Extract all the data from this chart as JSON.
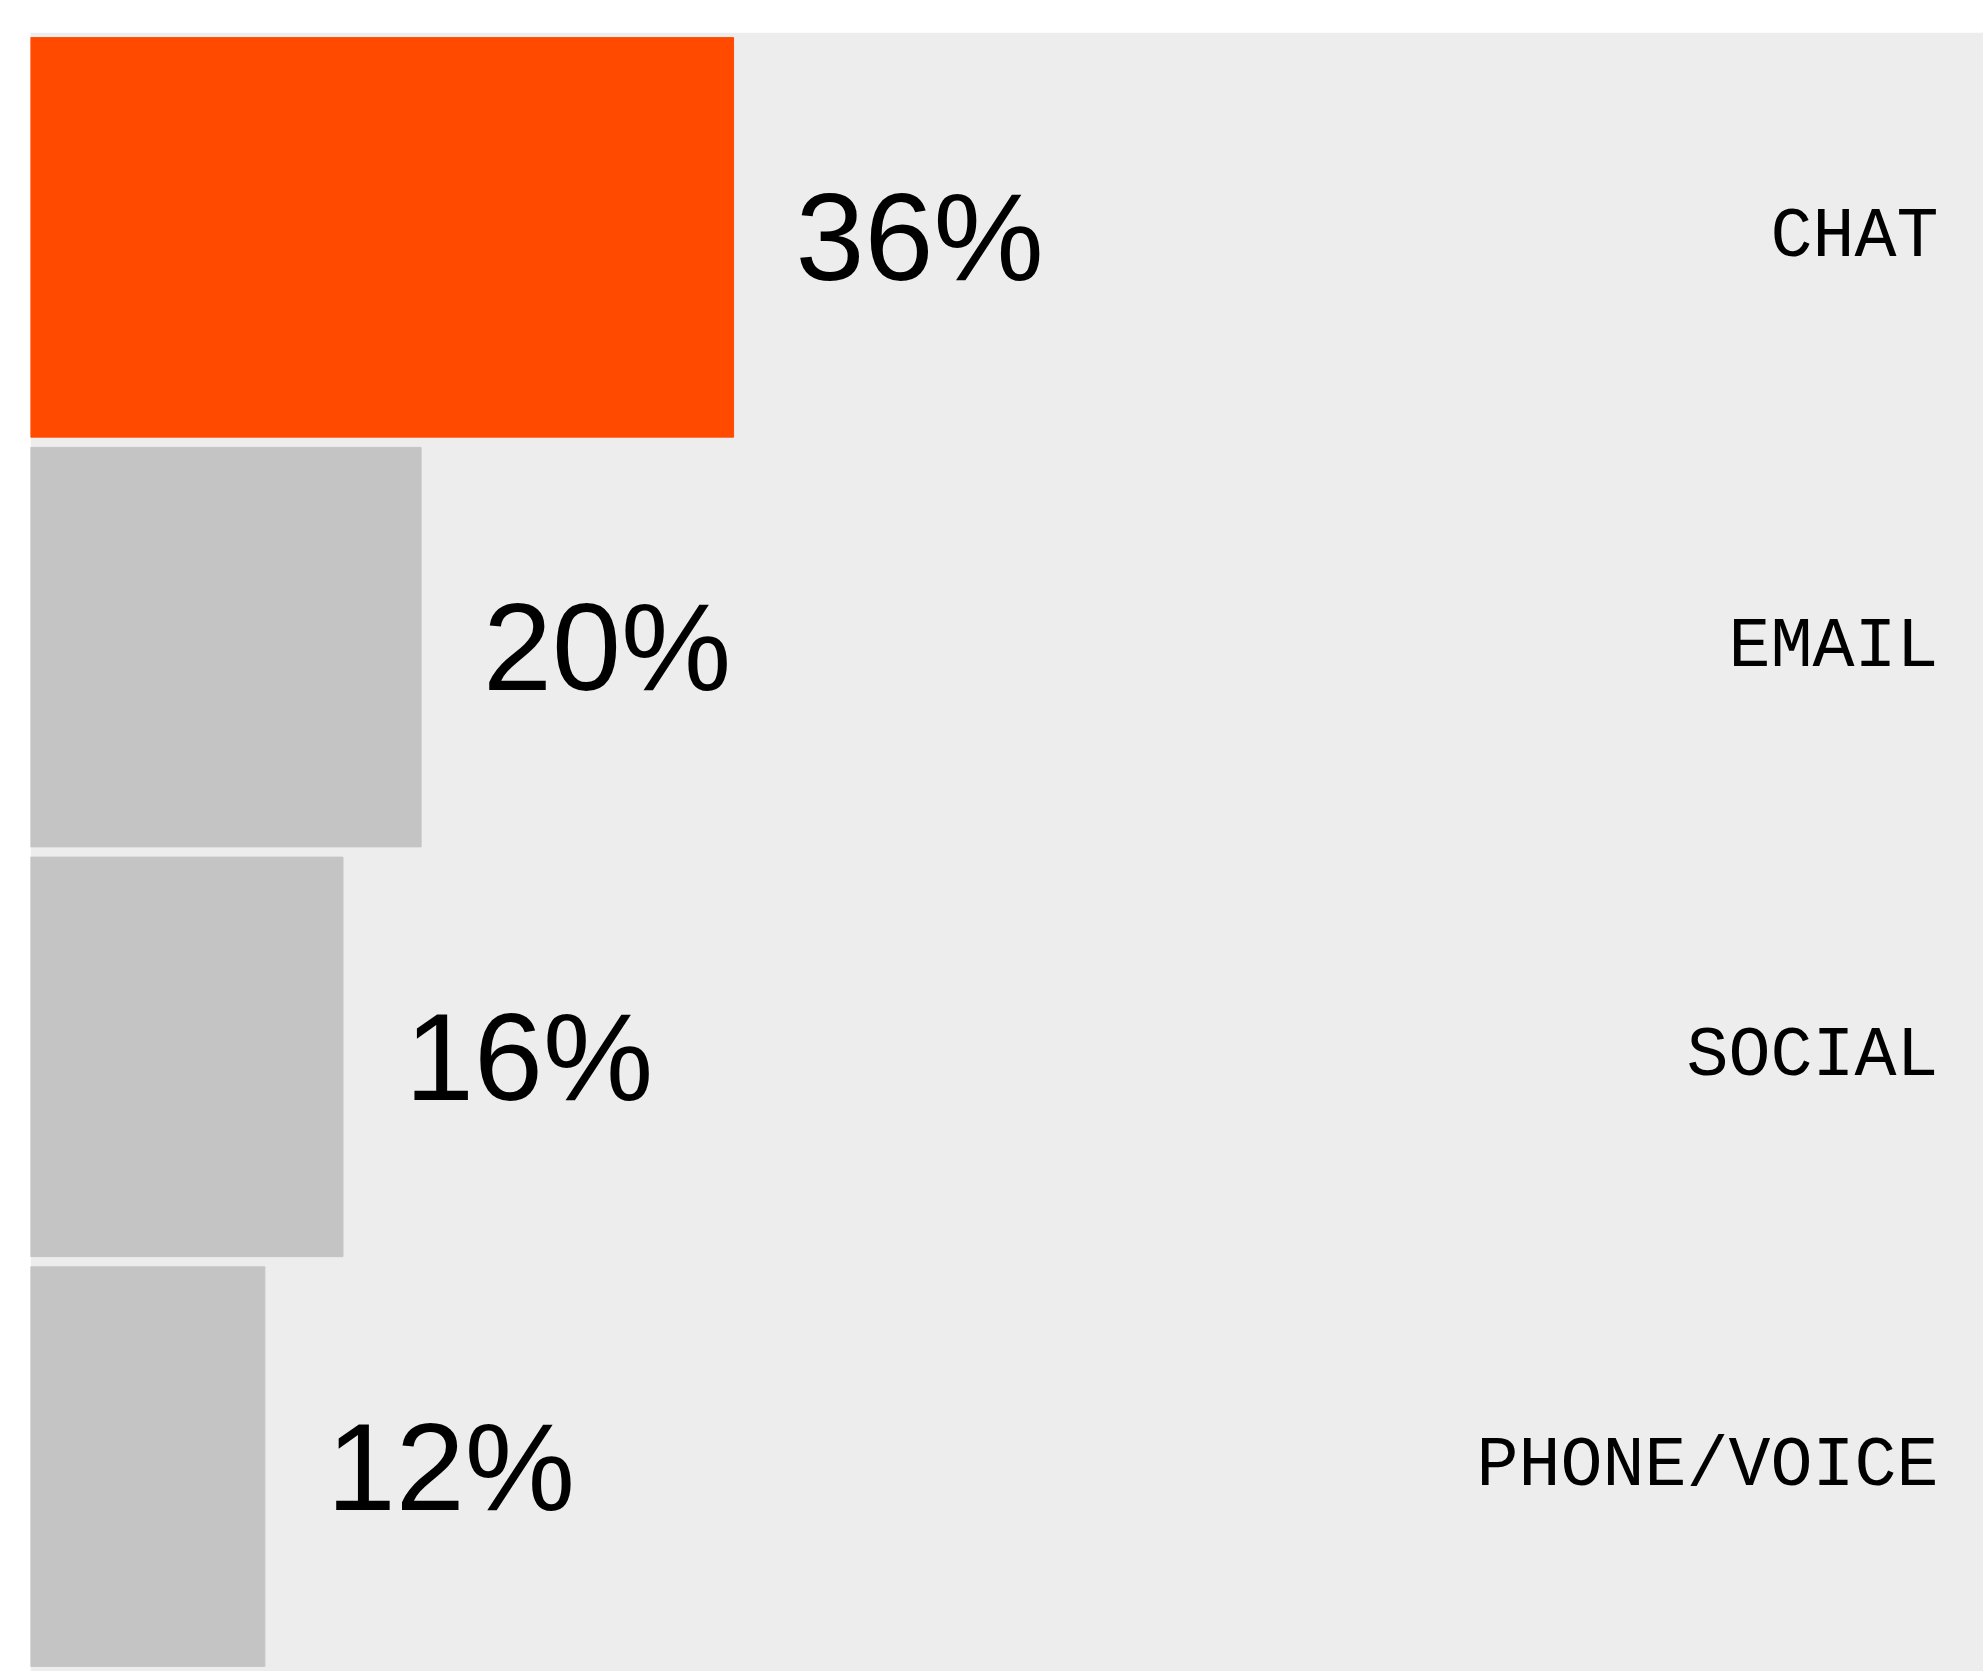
{
  "chart_data": {
    "type": "bar",
    "orientation": "horizontal",
    "categories": [
      "CHAT",
      "EMAIL",
      "SOCIAL",
      "PHONE/VOICE"
    ],
    "values": [
      36,
      20,
      16,
      12
    ],
    "colors": [
      "#ff4a00",
      "#c4c4c4",
      "#c4c4c4",
      "#c4c4c4"
    ],
    "value_labels": [
      "36%",
      "20%",
      "16%",
      "12%"
    ],
    "xlim": [
      0,
      100
    ],
    "bands": [
      {
        "axis": "x",
        "from": 0,
        "to": 100,
        "color": "#ededed"
      }
    ],
    "tick_labels": false
  }
}
